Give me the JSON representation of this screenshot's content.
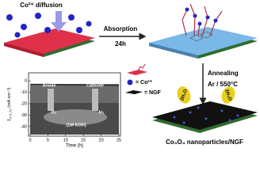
{
  "top_left": {
    "label": "Co²⁺ diffusion"
  },
  "step1": {
    "label": "Absorption",
    "time": "24h"
  },
  "step2": {
    "label": "Annealing",
    "condition": "Ar / 550°C"
  },
  "legend": {
    "ion": "= Co²⁺",
    "ngf": "= NGF"
  },
  "product": {
    "label": "Co₃O₄ nanoparticles/NGF",
    "molecules": [
      "2H₂O",
      "2H₂O"
    ]
  },
  "inset": {
    "type": "line",
    "y_label": {
      "symbol": "J",
      "subscript": "V=1.7V",
      "unit": "(mA cm⁻²)"
    },
    "x_label": "Time (h)",
    "annotations": [
      "Anode",
      "Cathode",
      "O₂",
      "(1M KOH)",
      "H₂"
    ],
    "x": [
      0,
      5,
      10,
      15,
      20,
      25
    ],
    "values": [
      -3,
      -3,
      -3.5,
      -3.5,
      -4,
      -4
    ],
    "color": "#222222",
    "xlim": [
      0,
      25
    ],
    "ylim": [
      -45,
      5
    ],
    "xticks": [
      0,
      5,
      10,
      15,
      20,
      25
    ],
    "yticks": [
      0,
      -10,
      -20,
      -30,
      -40
    ]
  }
}
